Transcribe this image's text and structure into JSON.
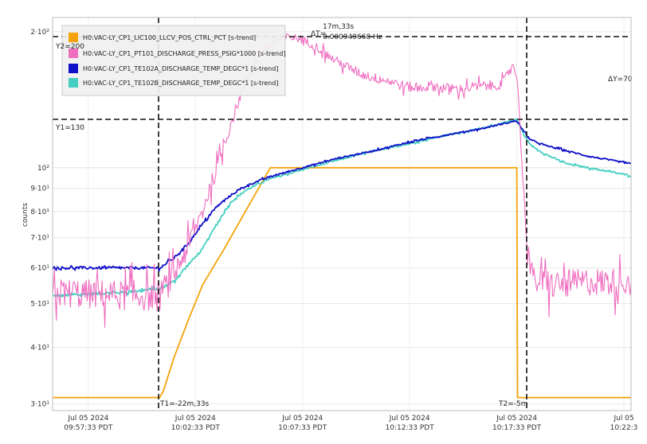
{
  "chart_data": {
    "type": "line",
    "ylabel": "counts",
    "y_scale": "log",
    "ylim": [
      29,
      215
    ],
    "xlim": [
      0,
      81
    ],
    "grid": true,
    "legend_position": "top-left",
    "y_ticks": [
      {
        "value": 30,
        "label": "3·10¹"
      },
      {
        "value": 40,
        "label": "4·10¹"
      },
      {
        "value": 50,
        "label": "5·10¹"
      },
      {
        "value": 60,
        "label": "6·10¹"
      },
      {
        "value": 70,
        "label": "7·10¹"
      },
      {
        "value": 80,
        "label": "8·10¹"
      },
      {
        "value": 90,
        "label": "9·10¹"
      },
      {
        "value": 100,
        "label": "10²"
      },
      {
        "value": 200,
        "label": "2·10²"
      }
    ],
    "x_ticks": [
      {
        "value": 5,
        "line1": "Jul 05 2024",
        "line2": "09:57:33 PDT"
      },
      {
        "value": 20,
        "line1": "Jul 05 2024",
        "line2": "10:02:33 PDT"
      },
      {
        "value": 35,
        "line1": "Jul 05 2024",
        "line2": "10:07:33 PDT"
      },
      {
        "value": 50,
        "line1": "Jul 05 2024",
        "line2": "10:12:33 PDT"
      },
      {
        "value": 65,
        "line1": "Jul 05 2024",
        "line2": "10:17:33 PDT"
      },
      {
        "value": 80,
        "line1": "Jul 05",
        "line2": "10:22:3"
      }
    ],
    "series": [
      {
        "name": "H0:VAC-LY_CP1_LIC100_LLCV_POS_CTRL_PCT [s-trend]",
        "color": "#f5a30a",
        "x": [
          0,
          15,
          15.5,
          17,
          19,
          21,
          24,
          27,
          30,
          30.5,
          65,
          65.1,
          81
        ],
        "y": [
          31,
          31,
          32,
          38,
          46,
          55,
          66,
          80,
          97,
          100,
          100,
          31,
          31
        ],
        "noise": 0
      },
      {
        "name": "H0:VAC-LY_CP1_PT101_DISCHARGE_PRESS_PSIG*1000 [s-trend]",
        "color": "#f06ec0",
        "x": [
          0,
          15,
          17,
          19,
          21,
          23,
          25,
          27,
          29,
          31,
          33,
          35,
          37,
          39,
          41,
          43,
          45,
          47,
          49,
          51,
          53,
          55,
          57,
          59,
          61,
          63,
          64.5,
          65,
          65.5,
          66,
          66.5,
          67,
          68,
          70,
          75,
          81
        ],
        "y": [
          53,
          52,
          58,
          67,
          80,
          100,
          125,
          155,
          178,
          190,
          195,
          192,
          185,
          175,
          168,
          162,
          158,
          156,
          152,
          150,
          152,
          150,
          149,
          151,
          152,
          153,
          170,
          160,
          120,
          85,
          68,
          58,
          56,
          55,
          56,
          56
        ],
        "noise": 4
      },
      {
        "name": "H0:VAC-LY_CP1_TE102A_DISCHARGE_TEMP_DEGC*1 [s-trend]",
        "color": "#1010c8",
        "x": [
          0,
          10,
          15,
          17,
          19,
          21,
          23,
          25,
          27,
          30,
          33,
          36,
          40,
          45,
          50,
          55,
          60,
          65,
          66,
          67,
          69,
          72,
          75,
          78,
          81
        ],
        "y": [
          60,
          60,
          60,
          63,
          68,
          75,
          82,
          87,
          91,
          95,
          98,
          101,
          105,
          109,
          114,
          118,
          122,
          127,
          120,
          115,
          112,
          109,
          106,
          104,
          102
        ],
        "noise": 0.4
      },
      {
        "name": "H0:VAC-LY_CP1_TE102B_DISCHARGE_TEMP_DEGC*1 [s-trend]",
        "color": "#45cfc0",
        "x": [
          0,
          10,
          15,
          17,
          19,
          21,
          23,
          25,
          27,
          30,
          33,
          36,
          40,
          45,
          50,
          55,
          60,
          65,
          66,
          67,
          69,
          72,
          75,
          78,
          81
        ],
        "y": [
          52,
          53,
          54,
          56,
          61,
          66,
          75,
          84,
          89,
          94,
          97,
          100,
          104,
          109,
          113,
          118,
          122,
          128,
          118,
          112,
          107,
          102,
          100,
          98,
          96
        ],
        "noise": 0.4
      }
    ],
    "cursors": {
      "vertical": [
        {
          "x": 15,
          "label": "T1=-22m,33s"
        },
        {
          "x": 65,
          "label": "T2=-5m"
        }
      ],
      "horizontal": [
        {
          "y": 200,
          "label": "Y2=200"
        },
        {
          "y": 130,
          "label": "Y1=130"
        }
      ],
      "dT_label": "ΔT=",
      "dT_value": "17m,33s",
      "dT_freq": "0.000949668 Hz",
      "dY_label": "ΔY=70"
    }
  }
}
